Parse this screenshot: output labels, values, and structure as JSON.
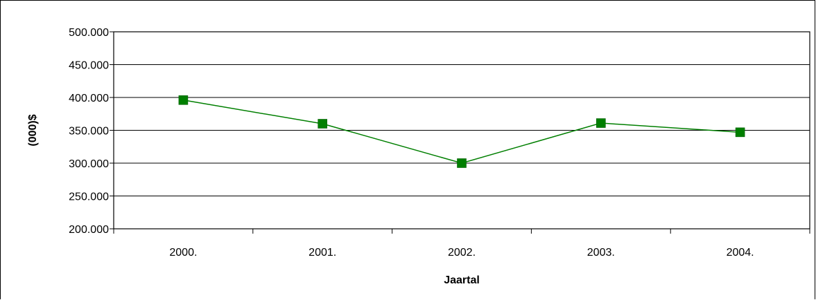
{
  "chart_data": {
    "type": "line",
    "title": "",
    "xlabel": "Jaartal",
    "ylabel": "(000)$",
    "categories": [
      "2000.",
      "2001.",
      "2002.",
      "2003.",
      "2004."
    ],
    "series": [
      {
        "values": [
          396000,
          360000,
          300000,
          361000,
          347000
        ],
        "color": "#007f00",
        "marker": "square"
      }
    ],
    "ylim": [
      200000,
      500000
    ],
    "yticks": [
      200000,
      250000,
      300000,
      350000,
      400000,
      450000,
      500000
    ],
    "ytick_labels": [
      "200.000",
      "250.000",
      "300.000",
      "350.000",
      "400.000",
      "450.000",
      "500.000"
    ],
    "grid": true,
    "legend": "none"
  }
}
